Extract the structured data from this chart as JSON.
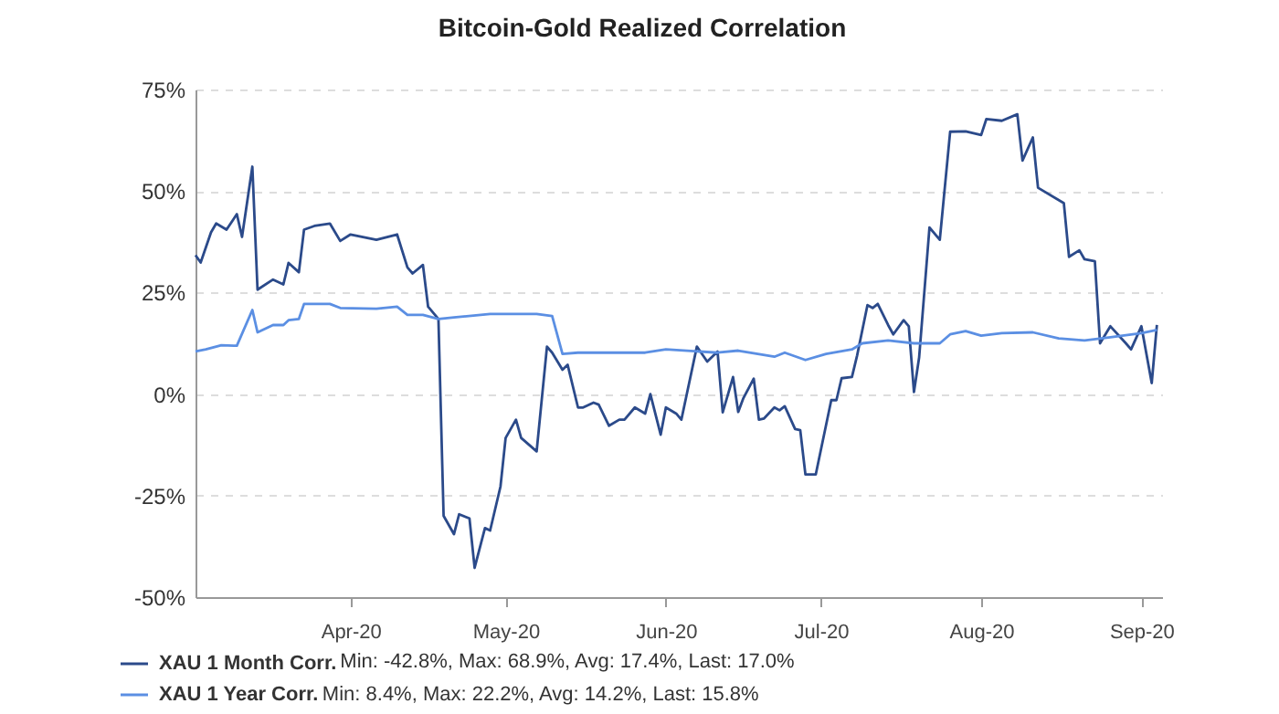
{
  "chart_data": {
    "type": "line",
    "title": "Bitcoin-Gold Realized Correlation",
    "xlim": [
      "2020-03-02",
      "2020-09-05"
    ],
    "xticks": [
      {
        "value": "2020-04-01",
        "label": "Apr-20"
      },
      {
        "value": "2020-05-01",
        "label": "May-20"
      },
      {
        "value": "2020-06-01",
        "label": "Jun-20"
      },
      {
        "value": "2020-07-01",
        "label": "Jul-20"
      },
      {
        "value": "2020-08-01",
        "label": "Aug-20"
      },
      {
        "value": "2020-09-01",
        "label": "Sep-20"
      }
    ],
    "ylim": [
      -50,
      75
    ],
    "yticks": [
      {
        "value": -50,
        "label": "-50%"
      },
      {
        "value": -25,
        "label": "-25%"
      },
      {
        "value": 0,
        "label": "0%"
      },
      {
        "value": 25,
        "label": "25%"
      },
      {
        "value": 50,
        "label": "50%"
      },
      {
        "value": 75,
        "label": "75%"
      }
    ],
    "grid": "y",
    "legend": "bottom",
    "annotations": [
      "Min: -42.8%, Max: 68.9%, Avg: 17.4%, Last: 17.0%",
      "Min: 8.4%, Max: 22.2%, Avg: 14.2%, Last: 15.8%"
    ],
    "series": [
      {
        "name": "XAU 1 Month Corr.",
        "color": "#2b4a8a",
        "x": [
          "2020-03-02",
          "2020-03-03",
          "2020-03-05",
          "2020-03-06",
          "2020-03-08",
          "2020-03-10",
          "2020-03-11",
          "2020-03-13",
          "2020-03-14",
          "2020-03-17",
          "2020-03-19",
          "2020-03-20",
          "2020-03-22",
          "2020-03-23",
          "2020-03-25",
          "2020-03-28",
          "2020-03-30",
          "2020-04-01",
          "2020-04-06",
          "2020-04-10",
          "2020-04-12",
          "2020-04-13",
          "2020-04-15",
          "2020-04-16",
          "2020-04-18",
          "2020-04-19",
          "2020-04-21",
          "2020-04-22",
          "2020-04-24",
          "2020-04-25",
          "2020-04-27",
          "2020-04-28",
          "2020-04-30",
          "2020-05-01",
          "2020-05-03",
          "2020-05-04",
          "2020-05-07",
          "2020-05-09",
          "2020-05-10",
          "2020-05-12",
          "2020-05-13",
          "2020-05-15",
          "2020-05-16",
          "2020-05-18",
          "2020-05-19",
          "2020-05-21",
          "2020-05-23",
          "2020-05-24",
          "2020-05-26",
          "2020-05-28",
          "2020-05-29",
          "2020-05-31",
          "2020-06-01",
          "2020-06-03",
          "2020-06-04",
          "2020-06-05",
          "2020-06-07",
          "2020-06-09",
          "2020-06-11",
          "2020-06-12",
          "2020-06-14",
          "2020-06-15",
          "2020-06-16",
          "2020-06-18",
          "2020-06-19",
          "2020-06-20",
          "2020-06-22",
          "2020-06-23",
          "2020-06-24",
          "2020-06-26",
          "2020-06-27",
          "2020-06-28",
          "2020-06-30",
          "2020-07-03",
          "2020-07-04",
          "2020-07-05",
          "2020-07-07",
          "2020-07-08",
          "2020-07-10",
          "2020-07-11",
          "2020-07-12",
          "2020-07-14",
          "2020-07-15",
          "2020-07-17",
          "2020-07-18",
          "2020-07-19",
          "2020-07-20",
          "2020-07-22",
          "2020-07-24",
          "2020-07-26",
          "2020-07-29",
          "2020-08-01",
          "2020-08-02",
          "2020-08-05",
          "2020-08-08",
          "2020-08-09",
          "2020-08-11",
          "2020-08-12",
          "2020-08-17",
          "2020-08-18",
          "2020-08-20",
          "2020-08-21",
          "2020-08-23",
          "2020-08-24",
          "2020-08-26",
          "2020-08-29",
          "2020-08-30",
          "2020-09-01",
          "2020-09-03",
          "2020-09-04"
        ],
        "values": [
          34.2,
          32.4,
          39.8,
          42,
          40.5,
          44.3,
          38.7,
          56,
          25.7,
          28.2,
          27,
          32.3,
          30,
          40.5,
          41.4,
          42,
          37.7,
          39.3,
          38,
          39.3,
          31.2,
          29.7,
          31.8,
          21.5,
          18.5,
          -30,
          -34.5,
          -29.6,
          -30.6,
          -42.8,
          -33,
          -33.6,
          -22.8,
          -10.8,
          -6.3,
          -10.8,
          -14.1,
          11.7,
          10.2,
          6,
          7.2,
          -3.3,
          -3.3,
          -2.1,
          -2.6,
          -7.8,
          -6.3,
          -6.3,
          -3.3,
          -4.8,
          0,
          -10,
          -3.3,
          -4.8,
          -6.3,
          -0.3,
          11.7,
          8,
          10.5,
          -4.5,
          4.2,
          -4.4,
          -1,
          3.8,
          -6.3,
          -6,
          -3.3,
          -4,
          -3,
          -8.6,
          -8.9,
          -19.8,
          -19.8,
          -1.5,
          -1.5,
          3.9,
          4.2,
          9.5,
          21.9,
          21.2,
          22.2,
          17,
          14.7,
          18.2,
          16.7,
          0.5,
          9,
          41,
          38,
          64.6,
          64.7,
          63.8,
          67.7,
          67.3,
          68.9,
          57.5,
          63.2,
          50.8,
          47,
          33.8,
          35.4,
          33.2,
          32.7,
          12.5,
          16.7,
          12.5,
          11,
          16.7,
          2.7,
          17.0
        ]
      },
      {
        "name": "XAU 1 Year Corr.",
        "color": "#5b8fe3",
        "x": [
          "2020-03-02",
          "2020-03-04",
          "2020-03-07",
          "2020-03-10",
          "2020-03-13",
          "2020-03-14",
          "2020-03-17",
          "2020-03-19",
          "2020-03-20",
          "2020-03-22",
          "2020-03-23",
          "2020-03-28",
          "2020-03-30",
          "2020-04-06",
          "2020-04-10",
          "2020-04-12",
          "2020-04-15",
          "2020-04-18",
          "2020-04-21",
          "2020-04-28",
          "2020-05-07",
          "2020-05-10",
          "2020-05-12",
          "2020-05-15",
          "2020-05-19",
          "2020-05-28",
          "2020-06-01",
          "2020-06-11",
          "2020-06-15",
          "2020-06-22",
          "2020-06-24",
          "2020-06-28",
          "2020-07-02",
          "2020-07-07",
          "2020-07-09",
          "2020-07-14",
          "2020-07-19",
          "2020-07-24",
          "2020-07-26",
          "2020-07-29",
          "2020-08-01",
          "2020-08-05",
          "2020-08-11",
          "2020-08-16",
          "2020-08-21",
          "2020-08-26",
          "2020-09-01",
          "2020-09-04"
        ],
        "values": [
          10.5,
          11,
          12,
          11.9,
          20.7,
          15.2,
          17,
          17,
          18.2,
          18.5,
          22.2,
          22.2,
          21.2,
          21,
          21.5,
          19.5,
          19.5,
          18.5,
          18.9,
          19.7,
          19.7,
          19.2,
          9.9,
          10.2,
          10.2,
          10.2,
          11,
          10.2,
          10.7,
          9.2,
          10.2,
          8.4,
          9.9,
          11,
          12.5,
          13.2,
          12.5,
          12.5,
          14.7,
          15.5,
          14.4,
          15,
          15.2,
          13.7,
          13.2,
          14,
          15,
          15.8
        ]
      }
    ]
  }
}
